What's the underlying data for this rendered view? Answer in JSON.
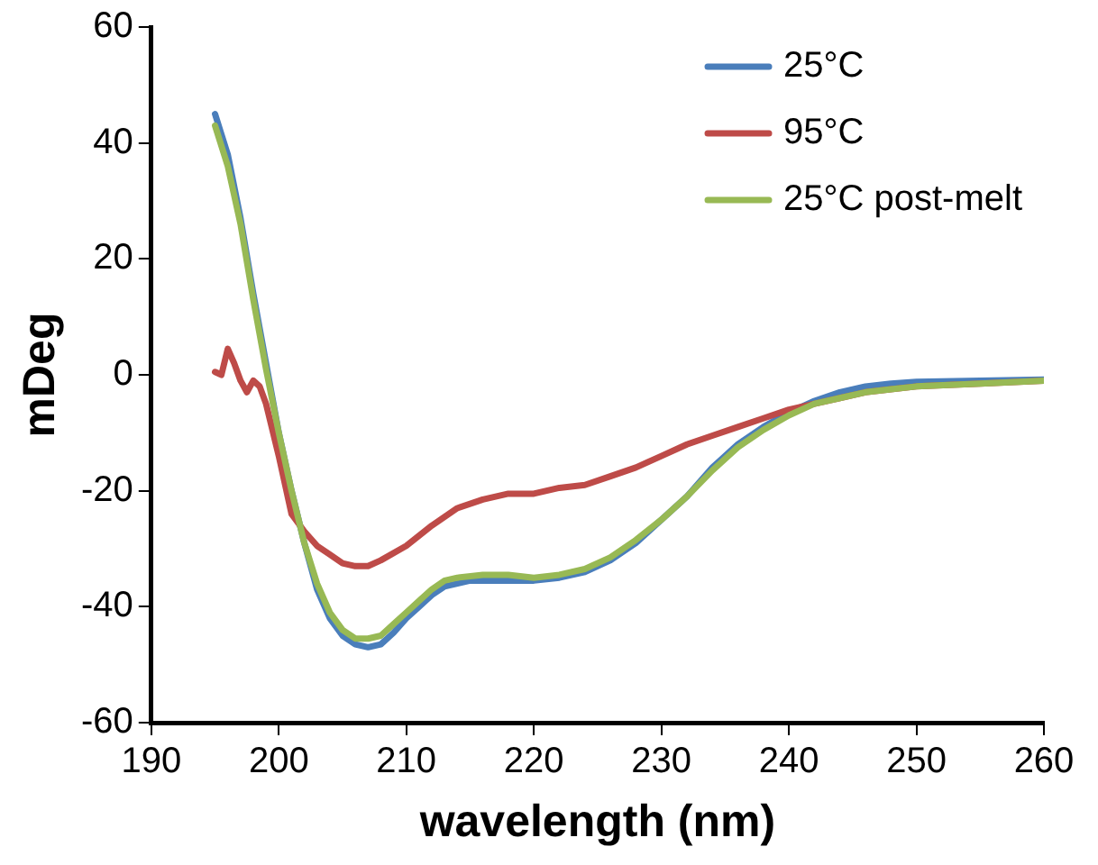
{
  "chart_data": {
    "type": "line",
    "xlabel": "wavelength (nm)",
    "ylabel": "mDeg",
    "xlim": [
      190,
      260
    ],
    "ylim": [
      -60,
      60
    ],
    "xticks": [
      190,
      200,
      210,
      220,
      230,
      240,
      250,
      260
    ],
    "yticks": [
      -60,
      -40,
      -20,
      0,
      20,
      40,
      60
    ],
    "legend": "top right",
    "grid": false,
    "marker": "none",
    "line_style": "solid",
    "series": [
      {
        "name": "25°C",
        "color": "#4a7ebb",
        "x": [
          195,
          196,
          197,
          198,
          199,
          200,
          201,
          202,
          203,
          204,
          205,
          206,
          207,
          208,
          209,
          210,
          211,
          212,
          213,
          214,
          215,
          216,
          218,
          220,
          222,
          224,
          226,
          228,
          230,
          232,
          234,
          236,
          238,
          240,
          242,
          244,
          246,
          248,
          250,
          255,
          260
        ],
        "values": [
          45,
          38,
          27,
          14,
          2,
          -10,
          -20,
          -29,
          -37,
          -42,
          -45,
          -46.5,
          -47,
          -46.5,
          -44.5,
          -42,
          -40,
          -38,
          -36.5,
          -36,
          -35.5,
          -35.5,
          -35.5,
          -35.5,
          -35,
          -34,
          -32,
          -29,
          -25,
          -21,
          -16,
          -12,
          -9,
          -6.5,
          -4.5,
          -3,
          -2,
          -1.5,
          -1.2,
          -1,
          -0.8
        ]
      },
      {
        "name": "95°C",
        "color": "#be4b48",
        "x": [
          195,
          195.5,
          196,
          196.5,
          197,
          197.5,
          198,
          198.5,
          199,
          200,
          201,
          202,
          203,
          204,
          205,
          206,
          207,
          208,
          210,
          212,
          214,
          216,
          218,
          220,
          222,
          224,
          226,
          228,
          230,
          232,
          234,
          236,
          238,
          240,
          242,
          244,
          246,
          248,
          250,
          255,
          260
        ],
        "values": [
          0.5,
          0,
          4.5,
          2,
          -1,
          -3,
          -1,
          -2,
          -5,
          -14,
          -24,
          -27,
          -29.5,
          -31,
          -32.5,
          -33,
          -33,
          -32,
          -29.5,
          -26,
          -23,
          -21.5,
          -20.5,
          -20.5,
          -19.5,
          -19,
          -17.5,
          -16,
          -14,
          -12,
          -10.5,
          -9,
          -7.5,
          -6,
          -5,
          -4,
          -3,
          -2.5,
          -2,
          -1.5,
          -1
        ]
      },
      {
        "name": "25°C post-melt",
        "color": "#98b954",
        "x": [
          195,
          196,
          197,
          198,
          199,
          200,
          201,
          202,
          203,
          204,
          205,
          206,
          207,
          208,
          209,
          210,
          211,
          212,
          213,
          214,
          216,
          218,
          220,
          222,
          224,
          226,
          228,
          230,
          232,
          234,
          236,
          238,
          240,
          242,
          244,
          246,
          248,
          250,
          255,
          260
        ],
        "values": [
          43,
          36,
          26,
          13,
          1,
          -10,
          -20,
          -29,
          -36,
          -41,
          -44,
          -45.5,
          -45.5,
          -45,
          -43,
          -41,
          -39,
          -37,
          -35.5,
          -35,
          -34.5,
          -34.5,
          -35,
          -34.5,
          -33.5,
          -31.5,
          -28.5,
          -25,
          -21,
          -16.5,
          -12.5,
          -9.5,
          -7,
          -5,
          -4,
          -3,
          -2.5,
          -2,
          -1.5,
          -1
        ]
      }
    ]
  }
}
